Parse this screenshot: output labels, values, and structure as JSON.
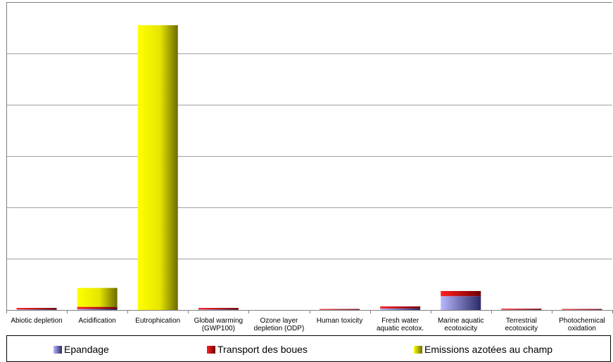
{
  "chart_data": {
    "type": "bar",
    "stacked": true,
    "categories": [
      "Abiotic depletion",
      "Acidification",
      "Eutrophication",
      "Global warming\n(GWP100)",
      "Ozone layer\ndepletion (ODP)",
      "Human toxicity",
      "Fresh water\naquatic ecotox.",
      "Marine aquatic\necotoxicity",
      "Terrestrial\necotoxicity",
      "Photochemical\noxidation"
    ],
    "series": [
      {
        "name": "Epandage",
        "color": "#7777cc",
        "values": [
          0.1,
          0.2,
          0,
          0.1,
          0,
          0.05,
          0.3,
          2.7,
          0.05,
          0.05
        ]
      },
      {
        "name": "Transport des boues",
        "color": "#e00000",
        "values": [
          0.3,
          0.4,
          0,
          0.3,
          0,
          0.15,
          0.4,
          1.0,
          0.2,
          0.15
        ]
      },
      {
        "name": "Emissions azotées au champ",
        "color": "#f0f000",
        "values": [
          0,
          3.7,
          55.5,
          0,
          0,
          0,
          0,
          0,
          0,
          0
        ]
      }
    ],
    "ylim": [
      0,
      60
    ],
    "ygrid_step": 10,
    "grid": true,
    "legend_position": "bottom"
  }
}
